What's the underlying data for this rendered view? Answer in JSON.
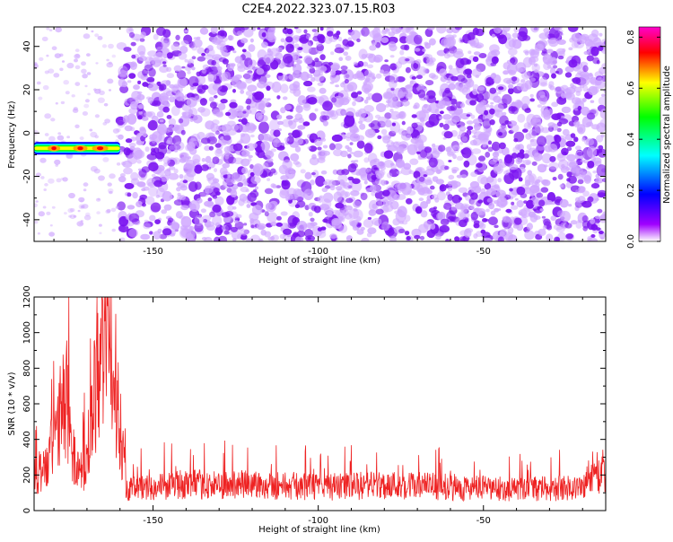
{
  "title": "C2E4.2022.323.07.15.R03",
  "colors": {
    "snr_line": "#ee2222",
    "speckle_light": "#cfa6ff",
    "speckle_dark": "#7a12f0",
    "axis": "#000000"
  },
  "chart_data": [
    {
      "type": "heatmap",
      "name": "spectrogram",
      "xlabel": "Height of straight line (km)",
      "ylabel": "Frequency (Hz)",
      "xlim": [
        -186,
        -13
      ],
      "ylim": [
        -50,
        49
      ],
      "xticks": [
        -150,
        -100,
        -50
      ],
      "yticks": [
        -40,
        -20,
        0,
        20,
        40
      ],
      "grid": false,
      "colorbar": {
        "label": "Normalized spectral amplitude",
        "range": [
          0.0,
          0.84
        ],
        "ticks": [
          0.0,
          0.2,
          0.4,
          0.6,
          0.8
        ],
        "colormap": [
          "#ffffff",
          "#a000ff",
          "#0000ff",
          "#00ffff",
          "#00ff00",
          "#ffff00",
          "#ff0000",
          "#ff00cc"
        ]
      },
      "features": [
        {
          "description": "strong narrow band",
          "x_range": [
            -186,
            -160
          ],
          "frequency_hz": -7,
          "peak_amplitude": 0.84
        },
        {
          "description": "sparse weak noise",
          "x_range": [
            -186,
            -160
          ],
          "amplitude_range": [
            0.0,
            0.1
          ]
        },
        {
          "description": "dense noise speckle",
          "x_range": [
            -160,
            -13
          ],
          "amplitude_range": [
            0.0,
            0.15
          ]
        }
      ]
    },
    {
      "type": "line",
      "name": "snr",
      "xlabel": "Height of straight line (km)",
      "ylabel": "SNR (10 * v/v)",
      "xlim": [
        -186,
        -13
      ],
      "ylim": [
        0,
        1200
      ],
      "xticks": [
        -150,
        -100,
        -50
      ],
      "yticks": [
        0,
        200,
        400,
        600,
        800,
        1000,
        1200
      ],
      "grid": false,
      "series": [
        {
          "color": "#ee2222",
          "x": [
            -186,
            -182,
            -178,
            -176,
            -174,
            -172,
            -170,
            -168,
            -166,
            -164,
            -162,
            -160,
            -158,
            -150,
            -140,
            -130,
            -120,
            -110,
            -100,
            -90,
            -80,
            -70,
            -60,
            -50,
            -40,
            -30,
            -20,
            -16,
            -13
          ],
          "y": [
            250,
            300,
            650,
            770,
            350,
            280,
            300,
            750,
            1200,
            1150,
            1000,
            600,
            150,
            160,
            180,
            170,
            180,
            170,
            160,
            165,
            175,
            170,
            160,
            150,
            145,
            150,
            160,
            300,
            200
          ]
        }
      ]
    }
  ]
}
